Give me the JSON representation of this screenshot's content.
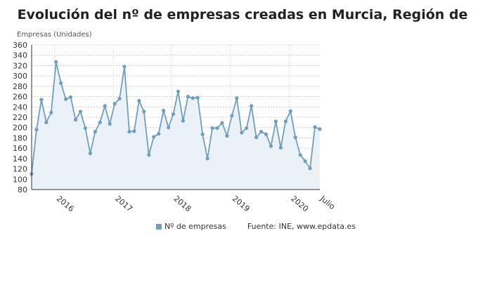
{
  "title": "Evolución del nº de empresas creadas en Murcia, Región de",
  "legend": {
    "label": "Nº de empresas",
    "source": "Fuente: INE, www.epdata.es"
  },
  "chart_data": {
    "type": "line",
    "title": "Evolución del nº de empresas creadas en Murcia, Región de",
    "ylabel": "Empresas (Unidades)",
    "xlabel": "",
    "ylim": [
      80,
      360
    ],
    "yticks": [
      80,
      100,
      120,
      140,
      160,
      180,
      200,
      220,
      240,
      260,
      280,
      300,
      320,
      340,
      360
    ],
    "xtick_labels": [
      "2016",
      "2017",
      "2018",
      "2019",
      "2020",
      "Julio"
    ],
    "x_start": "2015-08",
    "x": [
      "2015-08",
      "2015-09",
      "2015-10",
      "2015-11",
      "2015-12",
      "2016-01",
      "2016-02",
      "2016-03",
      "2016-04",
      "2016-05",
      "2016-06",
      "2016-07",
      "2016-08",
      "2016-09",
      "2016-10",
      "2016-11",
      "2016-12",
      "2017-01",
      "2017-02",
      "2017-03",
      "2017-04",
      "2017-05",
      "2017-06",
      "2017-07",
      "2017-08",
      "2017-09",
      "2017-10",
      "2017-11",
      "2017-12",
      "2018-01",
      "2018-02",
      "2018-03",
      "2018-04",
      "2018-05",
      "2018-06",
      "2018-07",
      "2018-08",
      "2018-09",
      "2018-10",
      "2018-11",
      "2018-12",
      "2019-01",
      "2019-02",
      "2019-03",
      "2019-04",
      "2019-05",
      "2019-06",
      "2019-07",
      "2019-08",
      "2019-09",
      "2019-10",
      "2019-11",
      "2019-12",
      "2020-01",
      "2020-02",
      "2020-03",
      "2020-04",
      "2020-05",
      "2020-06",
      "2020-07"
    ],
    "series": [
      {
        "name": "Nº de empresas",
        "color": "#6f9fbf",
        "values": [
          110,
          196,
          254,
          210,
          229,
          327,
          286,
          255,
          259,
          215,
          231,
          199,
          150,
          192,
          210,
          242,
          207,
          246,
          256,
          318,
          192,
          193,
          252,
          231,
          147,
          182,
          188,
          233,
          200,
          226,
          270,
          213,
          260,
          257,
          258,
          187,
          140,
          199,
          199,
          209,
          184,
          223,
          257,
          190,
          199,
          242,
          181,
          192,
          187,
          164,
          212,
          161,
          212,
          232,
          181,
          147,
          135,
          121,
          201,
          197
        ]
      }
    ],
    "grid": true,
    "legend_position": "bottom"
  }
}
